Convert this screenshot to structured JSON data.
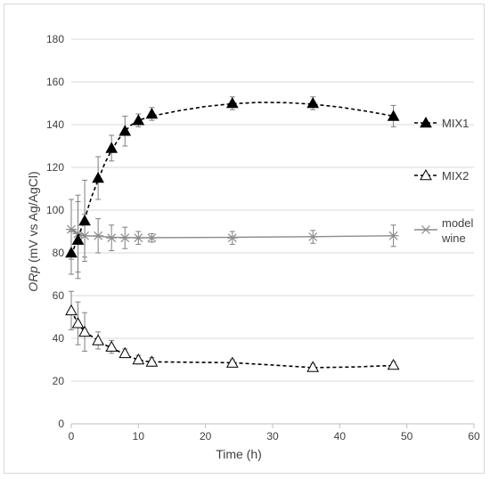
{
  "chart_data": {
    "type": "scatter",
    "title": "",
    "xlabel": "Time (h)",
    "ylabel_italic": "ORp",
    "ylabel_rest": " (mV vs Ag/AgCl)",
    "xlim": [
      0,
      60
    ],
    "ylim": [
      0,
      180
    ],
    "xticks": [
      0,
      10,
      20,
      30,
      40,
      50,
      60
    ],
    "yticks": [
      0,
      20,
      40,
      60,
      80,
      100,
      120,
      140,
      160,
      180
    ],
    "grid": "horizontal",
    "legend_position": "right",
    "series": [
      {
        "name": "MIX1",
        "marker": "filled-triangle",
        "line": "dashed",
        "color": "#000000",
        "x": [
          0,
          1,
          2,
          4,
          6,
          8,
          10,
          12,
          24,
          36,
          48
        ],
        "y": [
          80,
          86,
          95,
          115,
          129,
          137,
          142,
          145,
          150,
          150,
          144
        ],
        "err": [
          10,
          18,
          19,
          10,
          6,
          7,
          3,
          3,
          3,
          3,
          5
        ],
        "fit": [
          [
            0,
            79
          ],
          [
            1,
            87
          ],
          [
            2,
            96
          ],
          [
            3,
            106
          ],
          [
            4,
            114
          ],
          [
            5,
            122
          ],
          [
            6,
            128
          ],
          [
            7,
            133
          ],
          [
            8,
            137
          ],
          [
            9,
            140
          ],
          [
            10,
            142
          ],
          [
            12,
            144
          ],
          [
            16,
            146.5
          ],
          [
            20,
            148.5
          ],
          [
            24,
            149.8
          ],
          [
            28,
            150.4
          ],
          [
            32,
            150.3
          ],
          [
            36,
            149.6
          ],
          [
            40,
            148.2
          ],
          [
            44,
            146.3
          ],
          [
            48,
            144
          ]
        ]
      },
      {
        "name": "MIX2",
        "marker": "open-triangle",
        "line": "dashed",
        "color": "#000000",
        "x": [
          0,
          1,
          2,
          4,
          6,
          8,
          10,
          12,
          24,
          36,
          48
        ],
        "y": [
          53,
          47,
          43,
          39,
          36,
          33,
          30,
          29,
          28.5,
          26.5,
          27.5
        ],
        "err": [
          9,
          10,
          9,
          4,
          3,
          2,
          2,
          2,
          1.5,
          1.5,
          1.5
        ],
        "fit": [
          [
            0,
            53
          ],
          [
            1,
            47
          ],
          [
            2,
            43
          ],
          [
            3,
            41
          ],
          [
            4,
            39
          ],
          [
            5,
            37
          ],
          [
            6,
            35.5
          ],
          [
            7,
            34
          ],
          [
            8,
            32.5
          ],
          [
            9,
            31
          ],
          [
            10,
            30
          ],
          [
            11,
            29.3
          ],
          [
            12,
            29
          ],
          [
            18,
            28.8
          ],
          [
            24,
            28.6
          ],
          [
            30,
            27.5
          ],
          [
            36,
            26.3
          ],
          [
            42,
            26.6
          ],
          [
            48,
            27.3
          ]
        ]
      },
      {
        "name": "model wine",
        "legend_lines": [
          "model",
          "wine"
        ],
        "marker": "asterisk",
        "line": "solid",
        "color": "#8c8c8c",
        "x": [
          0,
          1,
          2,
          4,
          6,
          8,
          10,
          12,
          24,
          36,
          48
        ],
        "y": [
          91,
          89,
          88,
          88,
          87,
          87,
          87,
          87,
          87,
          87.5,
          88
        ],
        "err": [
          14,
          18,
          10,
          8,
          6,
          5,
          3,
          2,
          3,
          3,
          5
        ],
        "fit": [
          [
            0,
            91
          ],
          [
            1,
            89
          ],
          [
            2,
            88
          ],
          [
            4,
            87.8
          ],
          [
            6,
            87.3
          ],
          [
            10,
            87.1
          ],
          [
            24,
            87.3
          ],
          [
            36,
            87.6
          ],
          [
            48,
            88
          ]
        ]
      }
    ]
  }
}
